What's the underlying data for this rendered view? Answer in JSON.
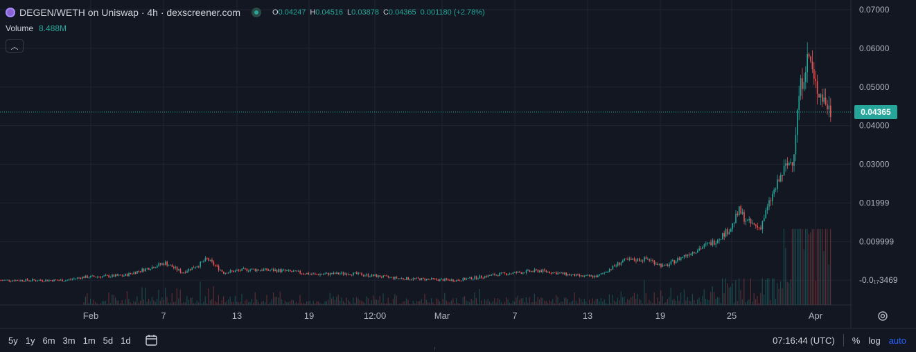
{
  "header": {
    "title": "DEGEN/WETH on Uniswap · 4h · dexscreener.com",
    "ohlc": [
      {
        "k": "O",
        "v": "0.04247"
      },
      {
        "k": "H",
        "v": "0.04516"
      },
      {
        "k": "L",
        "v": "0.03878"
      },
      {
        "k": "C",
        "v": "0.04365"
      }
    ],
    "change": "0.001180 (+2.78%)",
    "volume_label": "Volume",
    "volume_value": "8.488M",
    "collapse_glyph": "︿"
  },
  "price_badge": "0.04365",
  "bottom": {
    "ranges": [
      "5y",
      "1y",
      "6m",
      "3m",
      "1m",
      "5d",
      "1d"
    ],
    "time": "07:16:44 (UTC)",
    "percent": "%",
    "log": "log",
    "auto": "auto"
  },
  "icons": [
    "logo-icon",
    "calendar-range-icon",
    "settings-icon",
    "chevron-up-icon"
  ],
  "colors": {
    "up": "#26a69a",
    "down": "#ef5350",
    "background": "#131722",
    "grid": "#1f2433",
    "text": "#b2b5be",
    "accent": "#2962ff"
  },
  "chart_data": {
    "type": "candlestick",
    "yaxis": {
      "ticks": [
        "0.07000",
        "0.06000",
        "0.05000",
        "0.04000",
        "0.03000",
        "0.01999",
        "0.009999",
        "-0.0₁₇3469"
      ],
      "tick_values": [
        0.07,
        0.06,
        0.05,
        0.04,
        0.03,
        0.02,
        0.01,
        0.0
      ],
      "ylim": [
        -0.0064,
        0.0725
      ]
    },
    "xaxis": {
      "ticks": [
        "Feb",
        "7",
        "13",
        "19",
        "12:00",
        "Mar",
        "7",
        "13",
        "19",
        "25",
        "Apr"
      ]
    },
    "last_price": 0.04365,
    "grid": true,
    "price_path": [
      [
        0.0,
        0.0
      ],
      [
        0.08,
        0.0
      ],
      [
        0.1,
        0.0008
      ],
      [
        0.15,
        0.0012
      ],
      [
        0.2,
        0.0045
      ],
      [
        0.22,
        0.002
      ],
      [
        0.24,
        0.004
      ],
      [
        0.25,
        0.0055
      ],
      [
        0.27,
        0.002
      ],
      [
        0.3,
        0.0028
      ],
      [
        0.34,
        0.0025
      ],
      [
        0.38,
        0.0015
      ],
      [
        0.42,
        0.0018
      ],
      [
        0.48,
        0.0005
      ],
      [
        0.55,
        0.0
      ],
      [
        0.6,
        0.0015
      ],
      [
        0.65,
        0.0025
      ],
      [
        0.7,
        0.001
      ],
      [
        0.72,
        0.001
      ],
      [
        0.75,
        0.005
      ],
      [
        0.78,
        0.0055
      ],
      [
        0.8,
        0.0035
      ],
      [
        0.83,
        0.007
      ],
      [
        0.86,
        0.01
      ],
      [
        0.88,
        0.0135
      ],
      [
        0.89,
        0.018
      ],
      [
        0.9,
        0.015
      ],
      [
        0.915,
        0.0135
      ],
      [
        0.93,
        0.022
      ],
      [
        0.945,
        0.029
      ],
      [
        0.955,
        0.0315
      ],
      [
        0.962,
        0.048
      ],
      [
        0.97,
        0.056
      ],
      [
        0.975,
        0.058
      ],
      [
        0.98,
        0.051
      ],
      [
        0.99,
        0.0475
      ],
      [
        1.0,
        0.04365
      ]
    ],
    "volume_peak": 8.488
  }
}
